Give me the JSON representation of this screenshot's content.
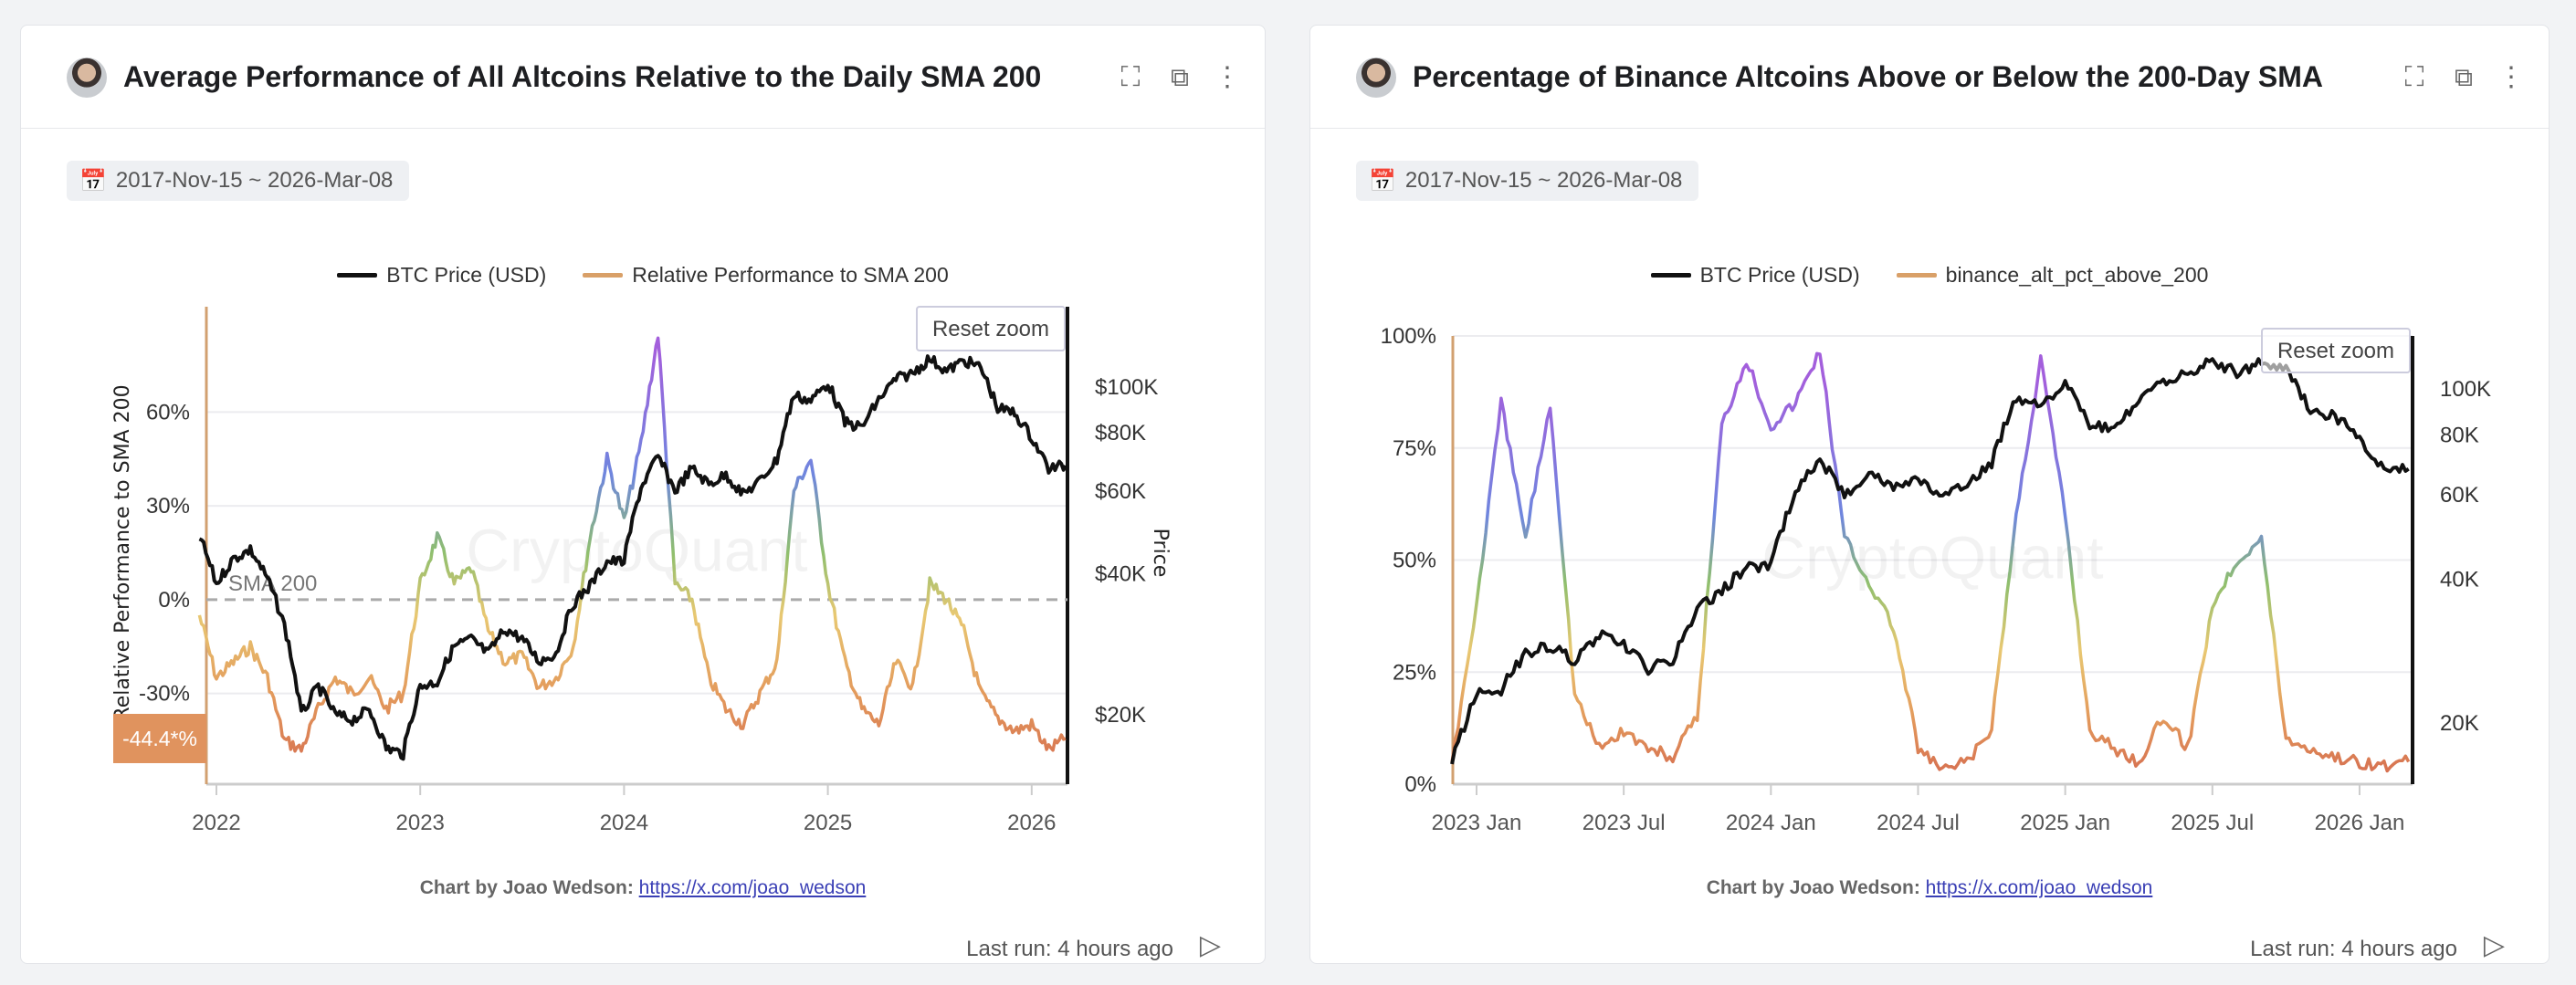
{
  "colors": {
    "btc": "#111111",
    "accent": "#e0945f",
    "grid": "#ececef",
    "scale": [
      {
        "v": -60,
        "c": "#d4694f"
      },
      {
        "v": -30,
        "c": "#e39a5c"
      },
      {
        "v": -5,
        "c": "#e8c872"
      },
      {
        "v": 15,
        "c": "#8fbf6e"
      },
      {
        "v": 40,
        "c": "#6f86de"
      },
      {
        "v": 80,
        "c": "#a35fdc"
      }
    ],
    "scale_pct": [
      {
        "v": 0,
        "c": "#d4694f"
      },
      {
        "v": 15,
        "c": "#e39a5c"
      },
      {
        "v": 30,
        "c": "#e8c872"
      },
      {
        "v": 45,
        "c": "#8fbf6e"
      },
      {
        "v": 60,
        "c": "#6f86de"
      },
      {
        "v": 90,
        "c": "#a35fdc"
      }
    ]
  },
  "cards": [
    {
      "title": "Average Performance of All Altcoins Relative to the Daily SMA 200",
      "date_range": "2017-Nov-15 ~ 2026-Mar-08",
      "icons": [
        "expand-icon",
        "external-link-icon",
        "more-icon"
      ],
      "reset_zoom": "Reset zoom",
      "watermark": "CryptoQuant",
      "credit_label": "Chart by Joao Wedson:",
      "credit_link": "https://x.com/joao_wedson",
      "last_run": "Last run: 4 hours ago"
    },
    {
      "title": "Percentage of Binance Altcoins Above or Below the 200-Day SMA",
      "date_range": "2017-Nov-15 ~ 2026-Mar-08",
      "icons": [
        "expand-icon",
        "external-link-icon",
        "more-icon"
      ],
      "reset_zoom": "Reset zoom",
      "watermark": "CryptoQuant",
      "credit_label": "Chart by Joao Wedson:",
      "credit_link": "https://x.com/joao_wedson",
      "last_run": "Last run: 4 hours ago"
    }
  ],
  "chart_data": [
    {
      "type": "line",
      "series": [
        {
          "name": "BTC Price (USD)",
          "axis": "right"
        },
        {
          "name": "Relative Performance to SMA 200",
          "axis": "left"
        }
      ],
      "ylabel": "Relative Performance to SMA 200",
      "y2label": "Price",
      "ylim": [
        -59,
        89
      ],
      "y2lim": [
        13500,
        150000
      ],
      "y2scale": "log",
      "xlim": [
        "2021-12",
        "2026-03"
      ],
      "x_ticks": [
        "2022",
        "2023",
        "2024",
        "2025",
        "2026"
      ],
      "y_ticks": [
        "60%",
        "30%",
        "0%",
        "-30%"
      ],
      "y2_ticks": [
        "$100K",
        "$80K",
        "$60K",
        "$40K",
        "$20K"
      ],
      "reference_line": {
        "value": 0,
        "label": "SMA 200"
      },
      "last_value_label": "-44.4*%",
      "x": [
        "2021-12",
        "2022-01",
        "2022-02",
        "2022-03",
        "2022-04",
        "2022-05",
        "2022-06",
        "2022-07",
        "2022-08",
        "2022-09",
        "2022-10",
        "2022-11",
        "2022-12",
        "2023-01",
        "2023-02",
        "2023-03",
        "2023-04",
        "2023-05",
        "2023-06",
        "2023-07",
        "2023-08",
        "2023-09",
        "2023-10",
        "2023-11",
        "2023-12",
        "2024-01",
        "2024-02",
        "2024-03",
        "2024-04",
        "2024-05",
        "2024-06",
        "2024-07",
        "2024-08",
        "2024-09",
        "2024-10",
        "2024-11",
        "2024-12",
        "2025-01",
        "2025-02",
        "2025-03",
        "2025-04",
        "2025-05",
        "2025-06",
        "2025-07",
        "2025-08",
        "2025-09",
        "2025-10",
        "2025-11",
        "2025-12",
        "2026-01",
        "2026-02",
        "2026-03"
      ],
      "btc": [
        48000,
        38000,
        43000,
        45000,
        39000,
        31000,
        20000,
        23000,
        20000,
        19500,
        20500,
        17000,
        16500,
        23000,
        23500,
        28000,
        29000,
        27000,
        30500,
        29000,
        26000,
        27000,
        34500,
        37700,
        42500,
        42500,
        61000,
        71000,
        60000,
        67000,
        62000,
        65000,
        59000,
        63000,
        70000,
        96000,
        93500,
        102000,
        84000,
        82000,
        94000,
        104000,
        107000,
        115000,
        108000,
        114000,
        110000,
        90000,
        88000,
        78000,
        67000,
        68000
      ],
      "values": [
        -5,
        -25,
        -20,
        -15,
        -25,
        -45,
        -48,
        -35,
        -25,
        -30,
        -25,
        -35,
        -30,
        5,
        20,
        5,
        10,
        -10,
        -20,
        -18,
        -28,
        -25,
        -15,
        20,
        45,
        25,
        50,
        85,
        5,
        0,
        -25,
        -35,
        -40,
        -30,
        -20,
        35,
        45,
        5,
        -20,
        -35,
        -40,
        -20,
        -28,
        5,
        0,
        -10,
        -30,
        -38,
        -42,
        -40,
        -48,
        -44.4
      ]
    },
    {
      "type": "line",
      "series": [
        {
          "name": "BTC Price (USD)",
          "axis": "right"
        },
        {
          "name": "binance_alt_pct_above_200",
          "axis": "left"
        }
      ],
      "ylim": [
        0,
        100
      ],
      "y2lim": [
        13000,
        130000
      ],
      "y2scale": "log",
      "xlim": [
        "2022-12",
        "2026-03"
      ],
      "x_ticks": [
        "2023 Jan",
        "2023 Jul",
        "2024 Jan",
        "2024 Jul",
        "2025 Jan",
        "2025 Jul",
        "2026 Jan"
      ],
      "y_ticks": [
        "100%",
        "75%",
        "50%",
        "25%",
        "0%"
      ],
      "y2_ticks": [
        "100K",
        "80K",
        "60K",
        "40K",
        "20K"
      ],
      "x": [
        "2022-12",
        "2023-01",
        "2023-02",
        "2023-03",
        "2023-04",
        "2023-05",
        "2023-06",
        "2023-07",
        "2023-08",
        "2023-09",
        "2023-10",
        "2023-11",
        "2023-12",
        "2024-01",
        "2024-02",
        "2024-03",
        "2024-04",
        "2024-05",
        "2024-06",
        "2024-07",
        "2024-08",
        "2024-09",
        "2024-10",
        "2024-11",
        "2024-12",
        "2025-01",
        "2025-02",
        "2025-03",
        "2025-04",
        "2025-05",
        "2025-06",
        "2025-07",
        "2025-08",
        "2025-09",
        "2025-10",
        "2025-11",
        "2025-12",
        "2026-01",
        "2026-02",
        "2026-03"
      ],
      "btc": [
        16500,
        23000,
        23500,
        28000,
        29000,
        27000,
        30500,
        29000,
        26000,
        27000,
        34500,
        37700,
        42500,
        42500,
        61000,
        71000,
        60000,
        67000,
        62000,
        65000,
        59000,
        63000,
        70000,
        96000,
        93500,
        102000,
        84000,
        82000,
        94000,
        104000,
        107000,
        115000,
        108000,
        114000,
        110000,
        90000,
        88000,
        78000,
        67000,
        68000
      ],
      "values": [
        5,
        40,
        85,
        55,
        85,
        20,
        8,
        12,
        8,
        6,
        15,
        80,
        95,
        80,
        85,
        97,
        55,
        45,
        35,
        8,
        3,
        5,
        12,
        60,
        95,
        60,
        12,
        8,
        5,
        15,
        8,
        40,
        50,
        55,
        10,
        8,
        6,
        5,
        4,
        5
      ]
    }
  ]
}
